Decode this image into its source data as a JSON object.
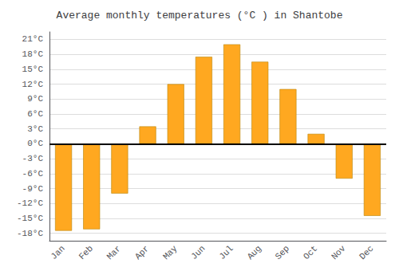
{
  "chart_data": {
    "type": "bar",
    "title": "Average monthly temperatures (°C ) in Shantobe",
    "categories": [
      "Jan",
      "Feb",
      "Mar",
      "Apr",
      "May",
      "Jun",
      "Jul",
      "Aug",
      "Sep",
      "Oct",
      "Nov",
      "Dec"
    ],
    "values": [
      -17.5,
      -17.2,
      -10.0,
      3.5,
      12.0,
      17.5,
      20.0,
      16.5,
      11.0,
      2.0,
      -7.0,
      -14.5
    ],
    "color": "#FFA820",
    "ylim": [
      -19.5,
      22.5
    ],
    "yticks": [
      {
        "value": -18,
        "label": "-18°C"
      },
      {
        "value": -15,
        "label": "-15°C"
      },
      {
        "value": -12,
        "label": "-12°C"
      },
      {
        "value": -9,
        "label": "-9°C"
      },
      {
        "value": -6,
        "label": "-6°C"
      },
      {
        "value": -3,
        "label": "-3°C"
      },
      {
        "value": 0,
        "label": "0°C"
      },
      {
        "value": 3,
        "label": "3°C"
      },
      {
        "value": 6,
        "label": "6°C"
      },
      {
        "value": 9,
        "label": "9°C"
      },
      {
        "value": 12,
        "label": "12°C"
      },
      {
        "value": 15,
        "label": "15°C"
      },
      {
        "value": 18,
        "label": "18°C"
      },
      {
        "value": 21,
        "label": "21°C"
      }
    ],
    "grid": true
  }
}
